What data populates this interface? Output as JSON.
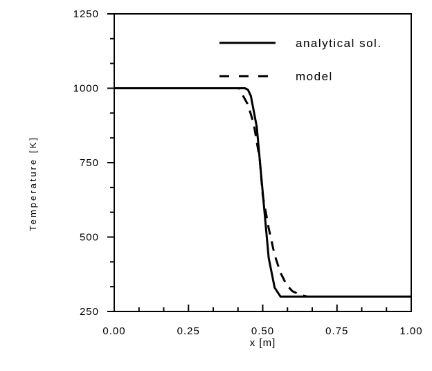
{
  "chart_data": {
    "type": "line",
    "title": "",
    "xlabel": "x [m]",
    "ylabel": "Temperature [K]",
    "xlim": [
      0.0,
      1.0
    ],
    "ylim": [
      250,
      1250
    ],
    "x_ticks": [
      "0.00",
      "0.25",
      "0.50",
      "0.75",
      "1.00"
    ],
    "y_ticks": [
      "250",
      "500",
      "750",
      "1000",
      "1250"
    ],
    "grid": false,
    "legend_position": "top-right",
    "series": [
      {
        "name": "analytical sol.",
        "style": "solid",
        "color": "#000000",
        "x": [
          0.0,
          0.44,
          0.45,
          0.46,
          0.48,
          0.5,
          0.52,
          0.54,
          0.56,
          1.0
        ],
        "y": [
          1000,
          1000,
          995,
          975,
          870,
          650,
          430,
          330,
          300,
          300
        ]
      },
      {
        "name": "model",
        "style": "dashed",
        "color": "#000000",
        "x": [
          0.0,
          0.42,
          0.45,
          0.47,
          0.49,
          0.5,
          0.52,
          0.54,
          0.56,
          0.58,
          0.6,
          0.63,
          0.65,
          1.0
        ],
        "y": [
          1000,
          1000,
          945,
          880,
          760,
          640,
          530,
          440,
          380,
          340,
          318,
          305,
          300,
          300
        ]
      }
    ]
  }
}
